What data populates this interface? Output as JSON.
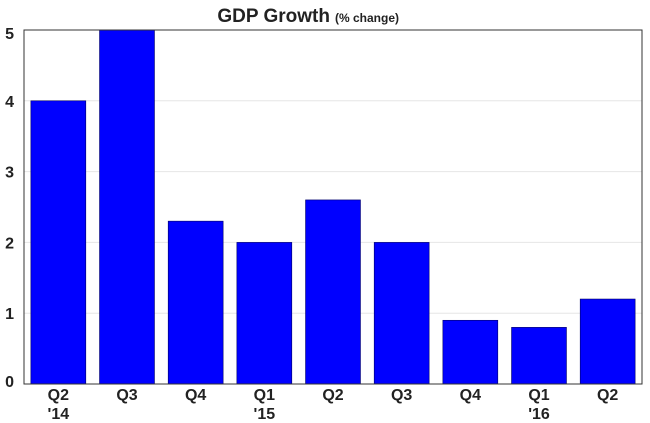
{
  "chart_data": {
    "type": "bar",
    "title": "GDP Growth",
    "subtitle": "(% change)",
    "xlabel": "",
    "ylabel": "",
    "categories": [
      "Q2 '14",
      "Q3",
      "Q4",
      "Q1 '15",
      "Q2",
      "Q3",
      "Q4",
      "Q1 '16",
      "Q2"
    ],
    "category_lines": [
      [
        "Q2",
        "'14"
      ],
      [
        "Q3"
      ],
      [
        "Q4"
      ],
      [
        "Q1",
        "'15"
      ],
      [
        "Q2"
      ],
      [
        "Q3"
      ],
      [
        "Q4"
      ],
      [
        "Q1",
        "'16"
      ],
      [
        "Q2"
      ]
    ],
    "values": [
      4.0,
      5.0,
      2.3,
      2.0,
      2.6,
      2.0,
      0.9,
      0.8,
      1.2
    ],
    "ylim": [
      0,
      5
    ],
    "yticks": [
      0,
      1,
      2,
      3,
      4,
      5
    ],
    "grid": true,
    "legend": "none",
    "bar_color": "#0000ff",
    "grid_color": "#e6e6e6"
  }
}
